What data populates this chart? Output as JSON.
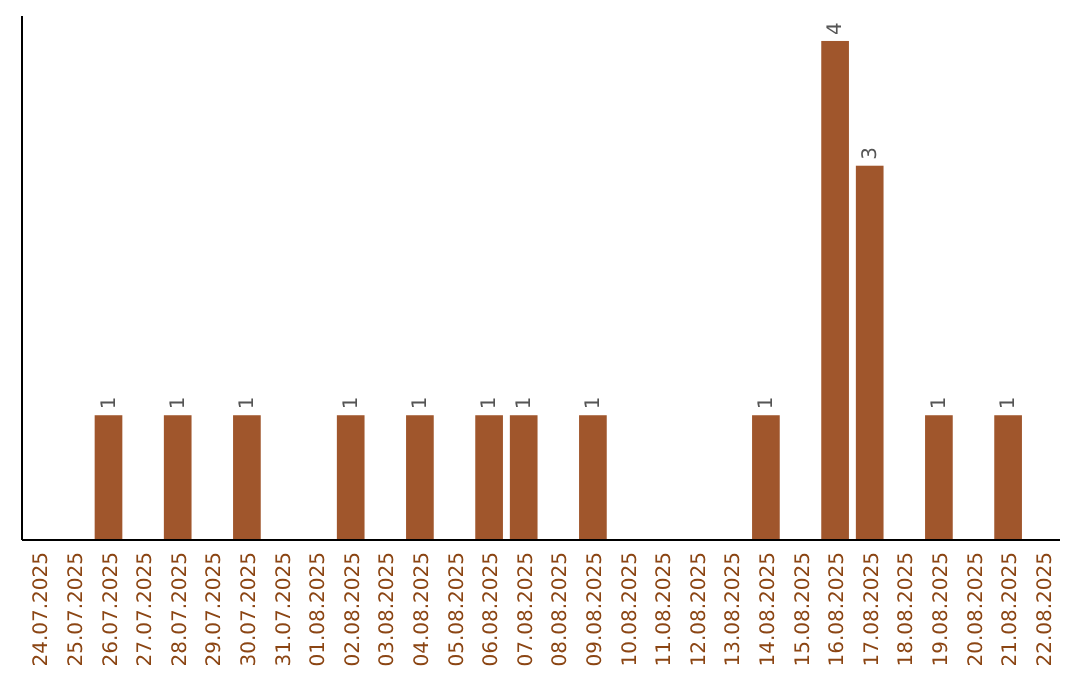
{
  "chart_data": {
    "type": "bar",
    "categories": [
      "24.07.2025",
      "25.07.2025",
      "26.07.2025",
      "27.07.2025",
      "28.07.2025",
      "29.07.2025",
      "30.07.2025",
      "31.07.2025",
      "01.08.2025",
      "02.08.2025",
      "03.08.2025",
      "04.08.2025",
      "05.08.2025",
      "06.08.2025",
      "07.08.2025",
      "08.08.2025",
      "09.08.2025",
      "10.08.2025",
      "11.08.2025",
      "12.08.2025",
      "13.08.2025",
      "14.08.2025",
      "15.08.2025",
      "16.08.2025",
      "17.08.2025",
      "18.08.2025",
      "19.08.2025",
      "20.08.2025",
      "21.08.2025",
      "22.08.2025"
    ],
    "values": [
      0,
      0,
      1,
      0,
      1,
      0,
      1,
      0,
      0,
      1,
      0,
      1,
      0,
      1,
      1,
      0,
      1,
      0,
      0,
      0,
      0,
      1,
      0,
      4,
      3,
      0,
      1,
      0,
      1,
      0
    ],
    "value_labels": [
      null,
      null,
      "1",
      null,
      "1",
      null,
      "1",
      null,
      null,
      "1",
      null,
      "1",
      null,
      "1",
      "1",
      null,
      "1",
      null,
      null,
      null,
      null,
      "1",
      null,
      "4",
      "3",
      null,
      "1",
      null,
      "1",
      null
    ],
    "color": "#a0562c"
  }
}
